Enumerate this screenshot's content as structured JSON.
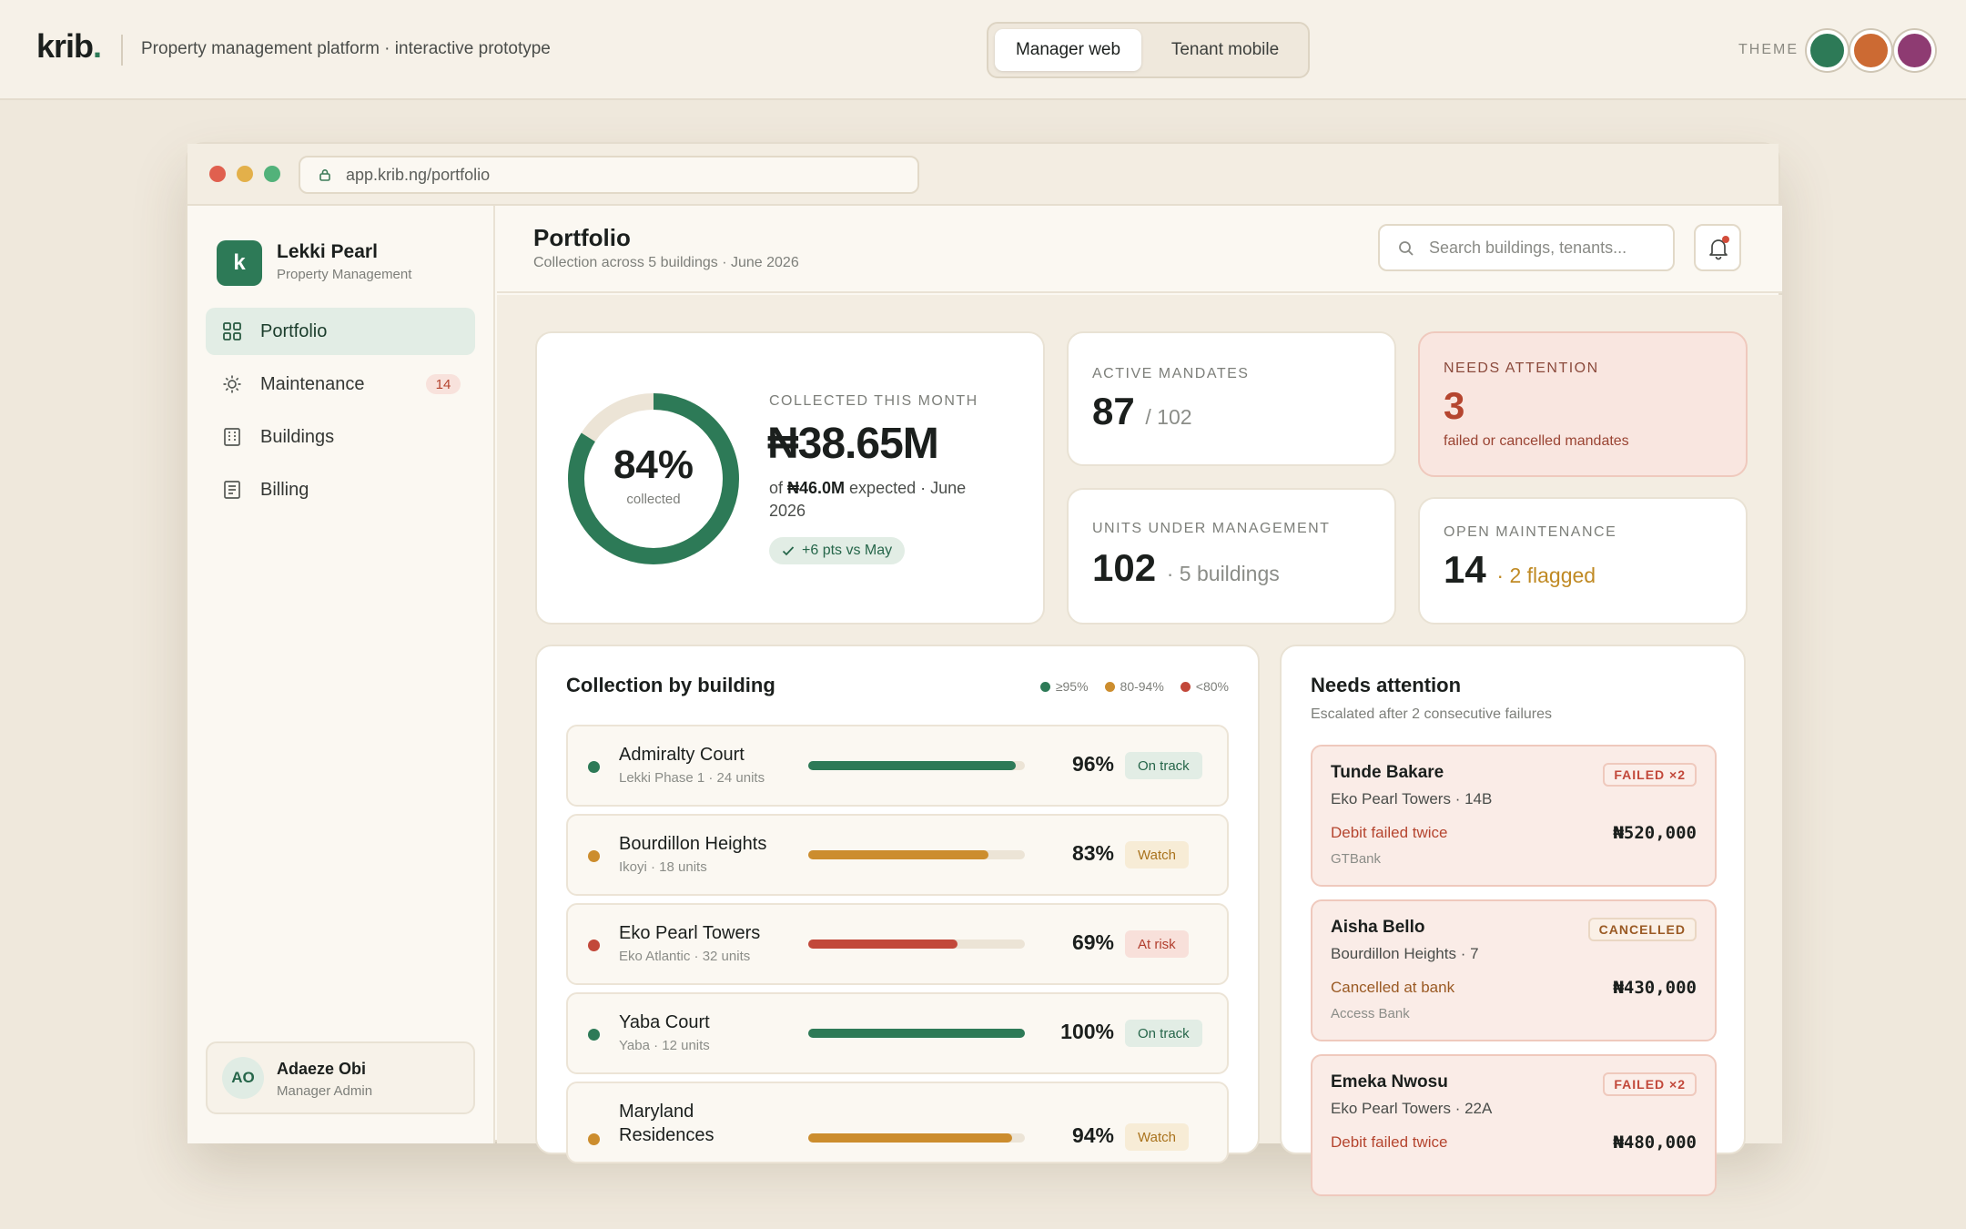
{
  "topbar": {
    "logo": "krib",
    "logo_dot": ".",
    "subtitle": "Property management platform · interactive prototype",
    "view_tabs": [
      {
        "label": "Manager web",
        "active": true
      },
      {
        "label": "Tenant mobile",
        "active": false
      }
    ],
    "theme_label": "THEME",
    "theme_swatches": [
      "#2d7a57",
      "#cc6a33",
      "#8e3b72"
    ]
  },
  "browser": {
    "url": "app.krib.ng/portfolio",
    "traffic_lights": [
      "#e0604f",
      "#e3b04a",
      "#52b27a"
    ]
  },
  "sidebar": {
    "org_initial": "k",
    "org_name": "Lekki Pearl",
    "org_sub": "Property Management",
    "items": [
      {
        "label": "Portfolio",
        "icon": "grid-icon",
        "active": true
      },
      {
        "label": "Maintenance",
        "icon": "gear-icon",
        "badge": "14"
      },
      {
        "label": "Buildings",
        "icon": "building-icon"
      },
      {
        "label": "Billing",
        "icon": "document-icon"
      }
    ],
    "user": {
      "initials": "AO",
      "name": "Adaeze Obi",
      "role": "Manager Admin"
    }
  },
  "header": {
    "title": "Portfolio",
    "subtitle": "Collection across 5 buildings · June 2026",
    "search_placeholder": "Search buildings, tenants..."
  },
  "hero": {
    "percent": "84%",
    "percent_value": 84,
    "percent_sub": "collected",
    "label": "COLLECTED THIS MONTH",
    "amount": "₦38.65M",
    "desc_prefix": "of ",
    "desc_bold": "₦46.0M",
    "desc_suffix": " expected · June 2026",
    "chip": "+6 pts vs May"
  },
  "stats": {
    "active_mandates": {
      "label": "ACTIVE MANDATES",
      "value": "87",
      "suffix": "/ 102"
    },
    "needs_attention": {
      "label": "NEEDS ATTENTION",
      "value": "3",
      "desc": "failed or cancelled mandates"
    },
    "units": {
      "label": "UNITS UNDER MANAGEMENT",
      "value": "102",
      "suffix": "· 5 buildings"
    },
    "maintenance": {
      "label": "OPEN MAINTENANCE",
      "value": "14",
      "suffix": "· 2 flagged"
    }
  },
  "collection": {
    "title": "Collection by building",
    "legend": [
      {
        "label": "≥95%",
        "color": "#2d7a57"
      },
      {
        "label": "80-94%",
        "color": "#cc8d2e"
      },
      {
        "label": "<80%",
        "color": "#c2483a"
      }
    ],
    "buildings": [
      {
        "name": "Admiralty Court",
        "sub": "Lekki Phase 1 · 24 units",
        "pct": "96%",
        "value": 96,
        "status": "On track",
        "tone": "good"
      },
      {
        "name": "Bourdillon Heights",
        "sub": "Ikoyi · 18 units",
        "pct": "83%",
        "value": 83,
        "status": "Watch",
        "tone": "watch"
      },
      {
        "name": "Eko Pearl Towers",
        "sub": "Eko Atlantic · 32 units",
        "pct": "69%",
        "value": 69,
        "status": "At risk",
        "tone": "risk"
      },
      {
        "name": "Yaba Court",
        "sub": "Yaba · 12 units",
        "pct": "100%",
        "value": 100,
        "status": "On track",
        "tone": "good"
      },
      {
        "name": "Maryland Residences",
        "sub": "",
        "pct": "94%",
        "value": 94,
        "status": "Watch",
        "tone": "watch"
      }
    ]
  },
  "attention": {
    "title": "Needs attention",
    "subtitle": "Escalated after 2 consecutive failures",
    "items": [
      {
        "name": "Tunde Bakare",
        "unit": "Eko Pearl Towers · 14B",
        "badge": "FAILED ×2",
        "reason": "Debit failed twice",
        "amount": "₦520,000",
        "bank": "GTBank"
      },
      {
        "name": "Aisha Bello",
        "unit": "Bourdillon Heights · 7",
        "badge": "CANCELLED",
        "reason": "Cancelled at bank",
        "amount": "₦430,000",
        "bank": "Access Bank"
      },
      {
        "name": "Emeka Nwosu",
        "unit": "Eko Pearl Towers · 22A",
        "badge": "FAILED ×2",
        "reason": "Debit failed twice",
        "amount": "₦480,000",
        "bank": ""
      }
    ]
  }
}
